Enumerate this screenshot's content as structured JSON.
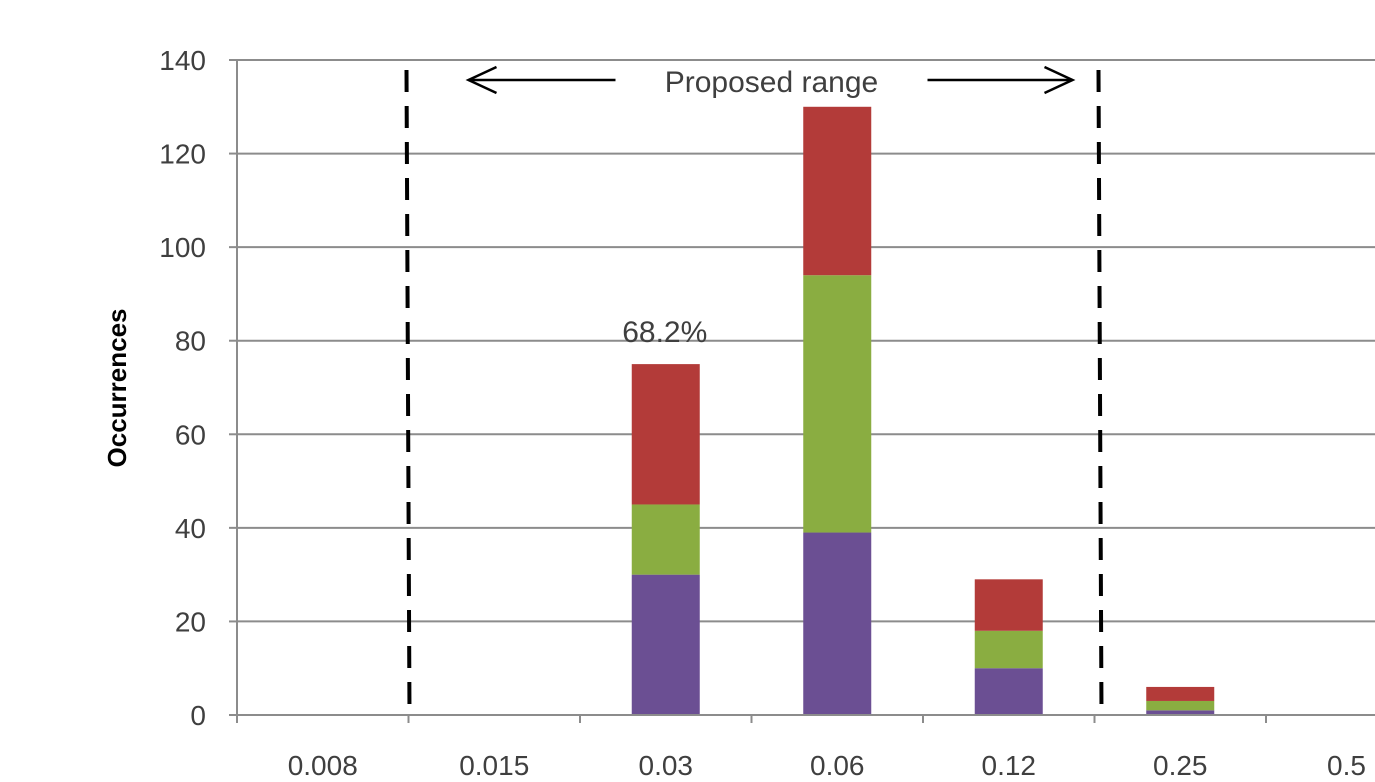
{
  "chart_data": {
    "type": "bar",
    "stacked": true,
    "title": "",
    "xlabel": "",
    "ylabel": "Occurrences",
    "ylim": [
      0,
      140
    ],
    "yticks": [
      "0",
      "20",
      "40",
      "60",
      "80",
      "100",
      "120",
      "140"
    ],
    "categories": [
      "0.008",
      "0.015",
      "0.03",
      "0.06",
      "0.12",
      "0.25",
      "0.5"
    ],
    "series": [
      {
        "color": "#6b4f93",
        "values": [
          0,
          0,
          30,
          39,
          10,
          1,
          0
        ]
      },
      {
        "color": "#8aad41",
        "values": [
          0,
          0,
          15,
          55,
          8,
          2,
          0
        ]
      },
      {
        "color": "#b33b39",
        "values": [
          0,
          0,
          30,
          36,
          11,
          3,
          0
        ]
      }
    ],
    "grid": true,
    "legend": "none",
    "annotations": {
      "bar_label": {
        "text": "68.2%",
        "category": "0.03"
      },
      "range_label": "Proposed range",
      "range_lines_at": [
        "0.008|0.015",
        "0.12|0.25"
      ]
    },
    "colors": {
      "grid": "#8c8c8c",
      "axis": "#8c8c8c",
      "tick_text": "#3f3f3f",
      "annotation": "#000000"
    }
  }
}
